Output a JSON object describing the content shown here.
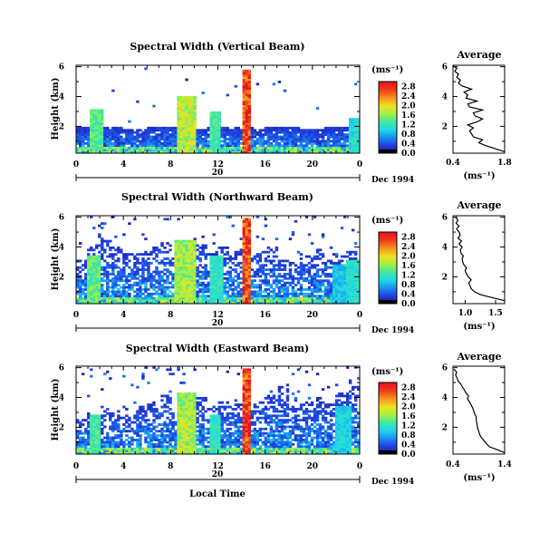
{
  "chart_data": [
    {
      "type": "heatmap",
      "title": "Spectral Width (Vertical Beam)",
      "ylabel": "Height (km)",
      "yticks": [
        "2",
        "4",
        "6"
      ],
      "ylim": [
        0.2,
        6.1
      ],
      "xlim": [
        0,
        24
      ],
      "xticks": [
        "0",
        "4",
        "8",
        "12",
        "16",
        "20",
        "0"
      ],
      "date_tick": "20",
      "date_label": "Dec 1994",
      "colorbar_unit": "(ms⁻¹)",
      "colorbar_ticks": [
        "0.0",
        "0.4",
        "0.8",
        "1.2",
        "1.6",
        "2.0",
        "2.4",
        "2.8"
      ],
      "colorbar_range": [
        0,
        3.0
      ],
      "coverage_top_km": [
        1.9,
        1.95,
        2.0,
        1.9,
        1.85,
        1.8,
        1.9,
        2.0,
        1.95,
        1.9,
        1.85,
        1.9,
        2.0,
        1.95,
        1.9,
        1.85,
        1.9,
        1.95,
        1.9,
        1.85,
        1.8,
        1.9,
        2.0,
        1.95,
        1.9
      ],
      "plumes": [
        {
          "t": 1.7,
          "top": 3.1,
          "w": 0.5,
          "v": 1.5
        },
        {
          "t": 9.4,
          "top": 4.0,
          "w": 0.8,
          "v": 1.9
        },
        {
          "t": 11.8,
          "top": 3.0,
          "w": 0.5,
          "v": 1.4
        },
        {
          "t": 14.4,
          "top": 5.8,
          "w": 0.35,
          "v": 2.9
        },
        {
          "t": 23.6,
          "top": 2.6,
          "w": 0.5,
          "v": 1.2
        }
      ],
      "profile": {
        "title": "Average",
        "xlabel": "(ms⁻¹)",
        "xlim": [
          0.4,
          1.8
        ],
        "xticks": [
          "0.4",
          "1.8"
        ],
        "ylim": [
          0.2,
          6.1
        ],
        "yticks": [
          "2",
          "4",
          "6"
        ],
        "points": [
          [
            1.8,
            0.3
          ],
          [
            1.55,
            0.5
          ],
          [
            1.3,
            0.7
          ],
          [
            1.1,
            0.9
          ],
          [
            1.2,
            1.1
          ],
          [
            0.95,
            1.3
          ],
          [
            0.9,
            1.5
          ],
          [
            0.85,
            1.7
          ],
          [
            0.95,
            1.9
          ],
          [
            0.8,
            2.1
          ],
          [
            1.05,
            2.3
          ],
          [
            1.2,
            2.5
          ],
          [
            1.0,
            2.7
          ],
          [
            0.95,
            2.9
          ],
          [
            1.2,
            3.1
          ],
          [
            0.85,
            3.3
          ],
          [
            0.8,
            3.5
          ],
          [
            1.05,
            3.7
          ],
          [
            0.75,
            3.9
          ],
          [
            0.8,
            4.1
          ],
          [
            0.7,
            4.3
          ],
          [
            0.9,
            4.5
          ],
          [
            0.65,
            4.7
          ],
          [
            0.55,
            4.9
          ],
          [
            0.6,
            5.1
          ],
          [
            0.5,
            5.3
          ],
          [
            0.55,
            5.5
          ],
          [
            0.45,
            5.7
          ],
          [
            0.5,
            5.9
          ],
          [
            0.4,
            6.05
          ]
        ]
      }
    },
    {
      "type": "heatmap",
      "title": "Spectral Width (Northward Beam)",
      "ylabel": "Height (km)",
      "yticks": [
        "2",
        "4",
        "6"
      ],
      "ylim": [
        0.2,
        6.1
      ],
      "xlim": [
        0,
        24
      ],
      "xticks": [
        "0",
        "4",
        "8",
        "12",
        "16",
        "20",
        "0"
      ],
      "date_tick": "20",
      "date_label": "Dec 1994",
      "colorbar_unit": "(ms⁻¹)",
      "colorbar_ticks": [
        "0.0",
        "0.4",
        "0.8",
        "1.2",
        "1.6",
        "2.0",
        "2.4",
        "2.8"
      ],
      "colorbar_range": [
        0,
        3.0
      ],
      "coverage_top_km": [
        3.2,
        4.2,
        4.6,
        4.0,
        3.6,
        3.8,
        4.1,
        4.4,
        3.5,
        3.9,
        4.2,
        3.6,
        4.0,
        3.7,
        3.4,
        3.8,
        4.1,
        3.3,
        3.0,
        3.6,
        3.9,
        3.2,
        3.5,
        3.7,
        3.3
      ],
      "plumes": [
        {
          "t": 1.5,
          "top": 3.4,
          "w": 0.6,
          "v": 1.5
        },
        {
          "t": 9.2,
          "top": 4.5,
          "w": 0.9,
          "v": 1.8
        },
        {
          "t": 11.9,
          "top": 3.4,
          "w": 0.5,
          "v": 1.3
        },
        {
          "t": 14.4,
          "top": 5.9,
          "w": 0.35,
          "v": 2.9
        },
        {
          "t": 22.2,
          "top": 2.8,
          "w": 0.6,
          "v": 1.0
        },
        {
          "t": 23.5,
          "top": 3.2,
          "w": 0.6,
          "v": 1.2
        }
      ],
      "profile": {
        "title": "Average",
        "xlabel": "(ms⁻¹)",
        "xlim": [
          0.8,
          1.65
        ],
        "xticks": [
          "1.0",
          "1.5"
        ],
        "ylim": [
          0.2,
          6.1
        ],
        "yticks": [
          "2",
          "4",
          "6"
        ],
        "points": [
          [
            1.65,
            0.4
          ],
          [
            1.45,
            0.6
          ],
          [
            1.25,
            0.8
          ],
          [
            1.15,
            1.0
          ],
          [
            1.1,
            1.2
          ],
          [
            1.08,
            1.4
          ],
          [
            1.06,
            1.6
          ],
          [
            1.1,
            1.8
          ],
          [
            1.05,
            2.0
          ],
          [
            1.02,
            2.2
          ],
          [
            1.0,
            2.4
          ],
          [
            1.02,
            2.6
          ],
          [
            0.98,
            2.8
          ],
          [
            0.96,
            3.0
          ],
          [
            0.95,
            3.2
          ],
          [
            0.97,
            3.4
          ],
          [
            0.93,
            3.6
          ],
          [
            0.92,
            3.8
          ],
          [
            0.95,
            4.0
          ],
          [
            0.9,
            4.2
          ],
          [
            0.94,
            4.4
          ],
          [
            0.88,
            4.6
          ],
          [
            0.92,
            4.8
          ],
          [
            0.9,
            5.0
          ],
          [
            0.86,
            5.2
          ],
          [
            0.9,
            5.4
          ],
          [
            0.85,
            5.6
          ],
          [
            0.88,
            5.8
          ],
          [
            0.84,
            6.0
          ]
        ]
      }
    },
    {
      "type": "heatmap",
      "title": "Spectral Width (Eastward Beam)",
      "ylabel": "Height (km)",
      "yticks": [
        "2",
        "4",
        "6"
      ],
      "ylim": [
        0.2,
        6.1
      ],
      "xlim": [
        0,
        24
      ],
      "xticks": [
        "0",
        "4",
        "8",
        "12",
        "16",
        "20",
        "0"
      ],
      "date_tick": "20",
      "date_label": "Dec 1994",
      "xlabel": "Local Time",
      "colorbar_unit": "(ms⁻¹)",
      "colorbar_ticks": [
        "0.0",
        "0.4",
        "0.8",
        "1.2",
        "1.6",
        "2.0",
        "2.4",
        "2.8"
      ],
      "colorbar_range": [
        0,
        3.0
      ],
      "coverage_top_km": [
        2.6,
        3.0,
        3.4,
        3.2,
        2.8,
        3.4,
        3.8,
        4.2,
        3.2,
        3.6,
        4.0,
        3.4,
        3.8,
        3.6,
        3.3,
        3.7,
        4.2,
        4.6,
        3.4,
        3.8,
        4.0,
        3.6,
        4.4,
        5.0,
        3.8
      ],
      "plumes": [
        {
          "t": 1.6,
          "top": 2.8,
          "w": 0.5,
          "v": 1.4
        },
        {
          "t": 9.3,
          "top": 4.4,
          "w": 0.8,
          "v": 1.8
        },
        {
          "t": 11.7,
          "top": 2.8,
          "w": 0.5,
          "v": 1.3
        },
        {
          "t": 14.4,
          "top": 6.0,
          "w": 0.35,
          "v": 2.9
        },
        {
          "t": 22.6,
          "top": 3.4,
          "w": 0.6,
          "v": 1.1
        }
      ],
      "profile": {
        "title": "Average",
        "xlabel": "(ms⁻¹)",
        "xlim": [
          0.4,
          1.4
        ],
        "xticks": [
          "0.4",
          "1.4"
        ],
        "ylim": [
          0.2,
          6.1
        ],
        "yticks": [
          "2",
          "4",
          "6"
        ],
        "points": [
          [
            1.4,
            0.3
          ],
          [
            1.25,
            0.5
          ],
          [
            1.1,
            0.7
          ],
          [
            1.05,
            0.9
          ],
          [
            1.0,
            1.1
          ],
          [
            0.95,
            1.3
          ],
          [
            0.92,
            1.5
          ],
          [
            0.9,
            1.7
          ],
          [
            0.88,
            1.9
          ],
          [
            0.87,
            2.1
          ],
          [
            0.86,
            2.3
          ],
          [
            0.85,
            2.5
          ],
          [
            0.85,
            2.7
          ],
          [
            0.82,
            2.9
          ],
          [
            0.8,
            3.1
          ],
          [
            0.78,
            3.3
          ],
          [
            0.75,
            3.5
          ],
          [
            0.72,
            3.7
          ],
          [
            0.68,
            3.9
          ],
          [
            0.7,
            4.1
          ],
          [
            0.65,
            4.3
          ],
          [
            0.62,
            4.5
          ],
          [
            0.58,
            4.7
          ],
          [
            0.55,
            4.9
          ],
          [
            0.5,
            5.1
          ],
          [
            0.48,
            5.3
          ],
          [
            0.45,
            5.5
          ],
          [
            0.47,
            5.7
          ],
          [
            0.42,
            5.9
          ]
        ]
      }
    }
  ]
}
